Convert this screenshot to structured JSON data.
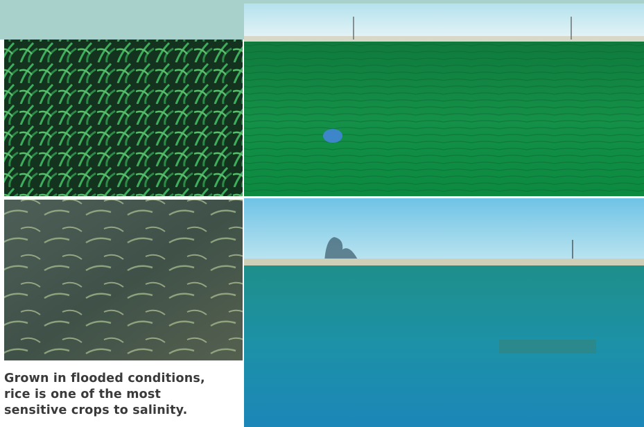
{
  "caption": {
    "lines": [
      "Grown in flooded conditions,",
      "rice is one of the most",
      "sensitive crops to salinity."
    ]
  }
}
